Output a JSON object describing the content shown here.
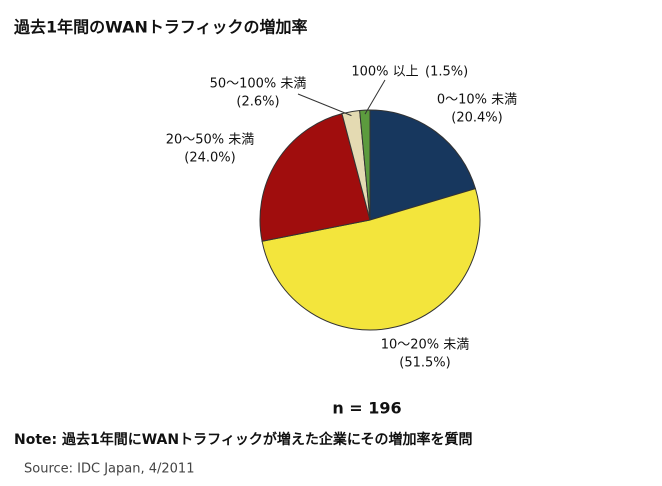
{
  "chart_data": {
    "type": "pie",
    "title": "過去1年間のWANトラフィックの増加率",
    "categories": [
      "0～10% 未満",
      "10～20% 未満",
      "20～50% 未満",
      "50～100% 未満",
      "100% 以上"
    ],
    "values": [
      20.4,
      51.5,
      24.0,
      2.6,
      1.5
    ],
    "value_labels": [
      "(20.4%)",
      "(51.5%)",
      "(24.0%)",
      "(2.6%)",
      "(1.5%)"
    ],
    "colors": [
      "#17375e",
      "#f3e53c",
      "#a00d0d",
      "#e4dab2",
      "#5c9b3e"
    ],
    "annotation": "n = 196",
    "note": "Note: 過去1年間にWANトラフィックが増えた企業にその増加率を質問",
    "source": "Source: IDC Japan, 4/2011"
  }
}
